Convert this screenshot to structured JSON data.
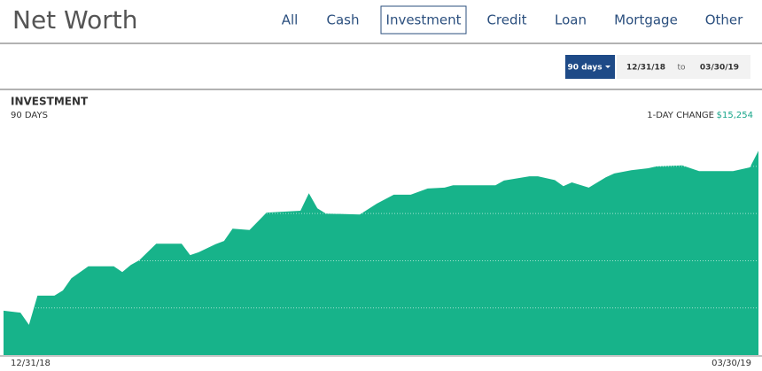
{
  "header": {
    "title": "Net Worth",
    "tabs": [
      "All",
      "Cash",
      "Investment",
      "Credit",
      "Loan",
      "Mortgage",
      "Other"
    ],
    "active_tab": 2
  },
  "controls": {
    "range_button": "90 days",
    "start_date": "12/31/18",
    "separator": "to",
    "end_date": "03/30/19"
  },
  "chart_data": {
    "type": "area",
    "title": "INVESTMENT",
    "subtitle": "90 DAYS",
    "change_label": "1-DAY CHANGE",
    "change_value": "$15,254",
    "x_axis_labels": [
      "12/31/18",
      "03/30/19"
    ],
    "x": [
      0,
      2,
      3,
      4,
      6,
      7,
      8,
      10,
      13,
      14,
      15,
      16,
      18,
      21,
      22,
      23,
      25,
      26,
      27,
      29,
      31,
      35,
      36,
      37,
      38,
      42,
      44,
      46,
      48,
      50,
      52,
      53,
      58,
      59,
      62,
      63,
      65,
      66,
      67,
      69,
      71,
      72,
      74,
      76,
      77,
      80,
      82,
      86,
      88,
      89
    ],
    "values": [
      0.94,
      0.9,
      0.64,
      1.26,
      1.26,
      1.37,
      1.63,
      1.88,
      1.88,
      1.76,
      1.91,
      2.01,
      2.36,
      2.36,
      2.12,
      2.18,
      2.35,
      2.42,
      2.68,
      2.65,
      3.02,
      3.06,
      3.43,
      3.11,
      3.0,
      2.98,
      3.21,
      3.4,
      3.4,
      3.53,
      3.55,
      3.6,
      3.6,
      3.7,
      3.79,
      3.79,
      3.71,
      3.58,
      3.66,
      3.55,
      3.77,
      3.85,
      3.92,
      3.96,
      4.0,
      4.02,
      3.9,
      3.9,
      3.98,
      4.33
    ],
    "color": "#17b38a",
    "xlim": [
      0,
      89
    ],
    "ylim": [
      0,
      5.5
    ],
    "yticks": [
      1,
      2,
      3,
      4
    ],
    "grid": true
  }
}
